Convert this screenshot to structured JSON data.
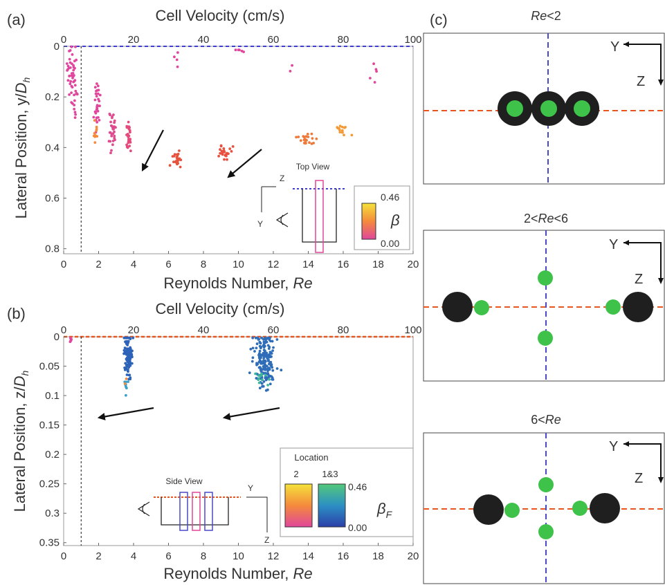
{
  "panel_labels": {
    "a": "(a)",
    "b": "(b)",
    "c": "(c)"
  },
  "colors": {
    "centerline_a": "#3d3dd6",
    "centerline_b": "#e8541e",
    "sphere": "#1f1f1f",
    "nucleus": "#3fc24a",
    "dash_red": "#e8541e",
    "dash_blue": "#4848c8"
  },
  "chart_data": [
    {
      "panel": "(a)",
      "type": "scatter",
      "title": "",
      "xlabel": "Reynolds Number, Re",
      "ylabel": "Lateral Position, y/Dh",
      "top_axis_label": "Cell Velocity (cm/s)",
      "xlim": [
        0,
        20
      ],
      "ylim": [
        0,
        0.82
      ],
      "y_inverted": true,
      "xticks": [
        "0",
        "2",
        "4",
        "6",
        "8",
        "10",
        "12",
        "14",
        "16",
        "18",
        "20"
      ],
      "yticks": [
        "0",
        "0.2",
        "0.4",
        "0.6",
        "0.8"
      ],
      "yticks_values": [
        0,
        0.2,
        0.4,
        0.6,
        0.8
      ],
      "top_ticks": [
        "0",
        "20",
        "40",
        "60",
        "80",
        "100"
      ],
      "reference_line_x": 1,
      "colorbar": {
        "label": "β",
        "max": "0.46",
        "min": "0.00",
        "colors": [
          "#e0469b",
          "#f48a3c",
          "#f5e23a"
        ]
      },
      "inset": {
        "title": "Top View",
        "axis_z": "Z",
        "axis_y": "Y"
      },
      "clusters": [
        {
          "x": 0.5,
          "y_center": 0.1,
          "x_spread": 0.25,
          "y_spread": 0.1,
          "count": 45,
          "color": "#e0469b"
        },
        {
          "x": 0.7,
          "y_center": 0.25,
          "x_spread": 0.2,
          "y_spread": 0.05,
          "count": 8,
          "color": "#e0469b"
        },
        {
          "x": 1.9,
          "y_center": 0.22,
          "x_spread": 0.15,
          "y_spread": 0.08,
          "count": 30,
          "color": "#e0469b"
        },
        {
          "x": 1.8,
          "y_center": 0.33,
          "x_spread": 0.12,
          "y_spread": 0.05,
          "count": 10,
          "color": "#f48a3c"
        },
        {
          "x": 2.8,
          "y_center": 0.33,
          "x_spread": 0.15,
          "y_spread": 0.07,
          "count": 32,
          "color": "#e04a8e"
        },
        {
          "x": 3.7,
          "y_center": 0.36,
          "x_spread": 0.15,
          "y_spread": 0.06,
          "count": 30,
          "color": "#e44a7c"
        },
        {
          "x": 6.5,
          "y_center": 0.45,
          "x_spread": 0.2,
          "y_spread": 0.03,
          "count": 26,
          "color": "#e5533e"
        },
        {
          "x": 9.2,
          "y_center": 0.42,
          "x_spread": 0.3,
          "y_spread": 0.02,
          "count": 24,
          "color": "#e8513f"
        },
        {
          "x": 13.8,
          "y_center": 0.37,
          "x_spread": 0.4,
          "y_spread": 0.025,
          "count": 22,
          "color": "#ee7a3a"
        },
        {
          "x": 16.0,
          "y_center": 0.33,
          "x_spread": 0.4,
          "y_spread": 0.02,
          "count": 14,
          "color": "#f39a38"
        },
        {
          "x": 17.8,
          "y_center": 0.12,
          "x_spread": 0.15,
          "y_spread": 0.04,
          "count": 5,
          "color": "#e0469b"
        },
        {
          "x": 10.0,
          "y_center": 0.02,
          "x_spread": 0.3,
          "y_spread": 0.01,
          "count": 5,
          "color": "#e0469b"
        },
        {
          "x": 6.6,
          "y_center": 0.05,
          "x_spread": 0.3,
          "y_spread": 0.03,
          "count": 4,
          "color": "#e0469b"
        },
        {
          "x": 13.0,
          "y_center": 0.08,
          "x_spread": 0.3,
          "y_spread": 0.02,
          "count": 2,
          "color": "#e0469b"
        }
      ]
    },
    {
      "panel": "(b)",
      "type": "scatter",
      "title": "",
      "xlabel": "Reynolds Number, Re",
      "ylabel": "Lateral Position, z/Dh",
      "top_axis_label": "Cell Velocity (cm/s)",
      "xlim": [
        0,
        20
      ],
      "ylim": [
        0,
        0.355
      ],
      "y_inverted": true,
      "xticks": [
        "0",
        "2",
        "4",
        "6",
        "8",
        "10",
        "12",
        "14",
        "16",
        "18",
        "20"
      ],
      "yticks": [
        "0",
        "0.05",
        "0.1",
        "0.15",
        "0.2",
        "0.25",
        "0.3",
        "0.35"
      ],
      "yticks_values": [
        0,
        0.05,
        0.1,
        0.15,
        0.2,
        0.25,
        0.3,
        0.35
      ],
      "top_ticks": [
        "0",
        "20",
        "40",
        "60",
        "80",
        "100"
      ],
      "reference_line_x": 1,
      "colorbar": {
        "label": "βF",
        "location_label": "Location",
        "left_label": "2",
        "right_label": "1&3",
        "max": "0.46",
        "min": "0.00",
        "colors_left": [
          "#e0469b",
          "#f48a3c",
          "#f5e23a"
        ],
        "colors_right": [
          "#2b3fa8",
          "#2c8fc4",
          "#53c97a"
        ]
      },
      "inset": {
        "title": "Side View",
        "axis_y": "Y",
        "axis_z": "Z"
      },
      "clusters": [
        {
          "x": 3.7,
          "y_center": 0.03,
          "x_spread": 0.2,
          "y_spread": 0.03,
          "count": 110,
          "color": "#2d63b8"
        },
        {
          "x": 3.6,
          "y_center": 0.08,
          "x_spread": 0.15,
          "y_spread": 0.01,
          "count": 8,
          "color": "#3a9fc9"
        },
        {
          "x": 11.5,
          "y_center": 0.04,
          "x_spread": 0.5,
          "y_spread": 0.035,
          "count": 190,
          "color": "#2f6db8"
        },
        {
          "x": 11.2,
          "y_center": 0.07,
          "x_spread": 0.4,
          "y_spread": 0.01,
          "count": 12,
          "color": "#3fb59a"
        },
        {
          "x": 0.4,
          "y_center": 0.005,
          "x_spread": 0.05,
          "y_spread": 0.006,
          "count": 6,
          "color": "#e0469b"
        },
        {
          "x": 3.5,
          "y_center": 0.07,
          "x_spread": 0.1,
          "y_spread": 0.01,
          "count": 2,
          "color": "#f48a3c"
        }
      ]
    }
  ],
  "panel_c": [
    {
      "title_prefix": "",
      "title_italic": "Re",
      "title_suffix": "<2",
      "axis_y": "Y",
      "axis_z": "Z"
    },
    {
      "title_prefix": "2<",
      "title_italic": "Re",
      "title_suffix": "<6",
      "axis_y": "Y",
      "axis_z": "Z"
    },
    {
      "title_prefix": "6<",
      "title_italic": "Re",
      "title_suffix": "",
      "axis_y": "Y",
      "axis_z": "Z"
    }
  ]
}
